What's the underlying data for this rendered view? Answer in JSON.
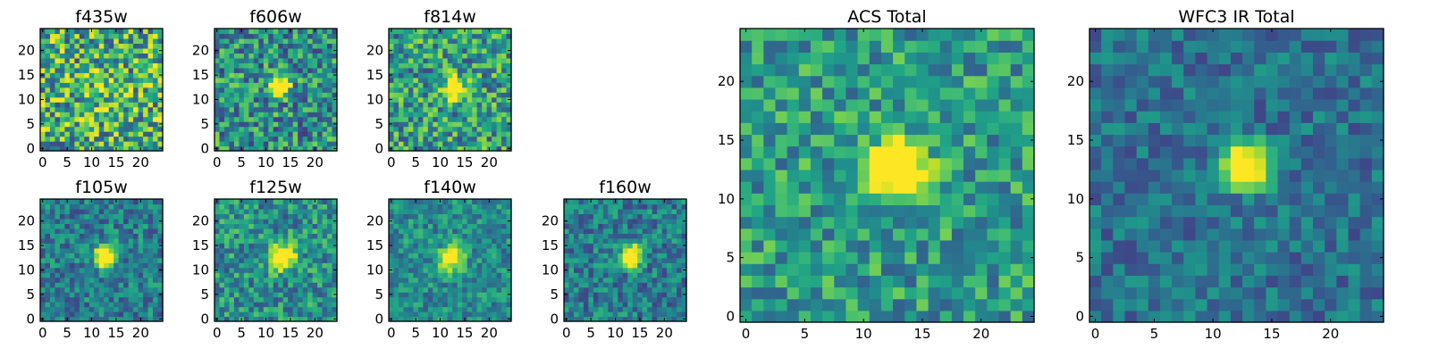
{
  "chart_data": [
    {
      "type": "heatmap",
      "title": "f435w",
      "grid_size": 25,
      "x_ticks": [
        "0",
        "5",
        "10",
        "15",
        "20"
      ],
      "y_ticks": [
        "0",
        "5",
        "10",
        "15",
        "20"
      ],
      "colormap": "viridis",
      "source": {
        "center": [
          12.5,
          12.5
        ],
        "peak": 0.08,
        "width": 2.0,
        "noise": 0.38,
        "base": 0.62
      }
    },
    {
      "type": "heatmap",
      "title": "f606w",
      "grid_size": 25,
      "x_ticks": [
        "0",
        "5",
        "10",
        "15",
        "20"
      ],
      "y_ticks": [
        "0",
        "5",
        "10",
        "15",
        "20"
      ],
      "colormap": "viridis",
      "source": {
        "center": [
          12.8,
          12.8
        ],
        "peak": 0.65,
        "width": 1.3,
        "noise": 0.32,
        "base": 0.5
      }
    },
    {
      "type": "heatmap",
      "title": "f814w",
      "grid_size": 25,
      "x_ticks": [
        "0",
        "5",
        "10",
        "15",
        "20"
      ],
      "y_ticks": [
        "0",
        "5",
        "10",
        "15",
        "20"
      ],
      "colormap": "viridis",
      "source": {
        "center": [
          12.8,
          12.4
        ],
        "peak": 0.6,
        "width": 1.4,
        "noise": 0.32,
        "base": 0.55
      }
    },
    {
      "type": "heatmap",
      "title": "f105w",
      "grid_size": 25,
      "x_ticks": [
        "0",
        "5",
        "10",
        "15",
        "20"
      ],
      "y_ticks": [
        "0",
        "5",
        "10",
        "15",
        "20"
      ],
      "colormap": "viridis",
      "source": {
        "center": [
          12.8,
          12.8
        ],
        "peak": 0.7,
        "width": 1.5,
        "noise": 0.22,
        "base": 0.42
      }
    },
    {
      "type": "heatmap",
      "title": "f125w",
      "grid_size": 25,
      "x_ticks": [
        "0",
        "5",
        "10",
        "15",
        "20"
      ],
      "y_ticks": [
        "0",
        "5",
        "10",
        "15",
        "20"
      ],
      "colormap": "viridis",
      "source": {
        "center": [
          13.3,
          12.8
        ],
        "peak": 0.6,
        "width": 1.8,
        "noise": 0.25,
        "base": 0.5
      }
    },
    {
      "type": "heatmap",
      "title": "f140w",
      "grid_size": 25,
      "x_ticks": [
        "0",
        "5",
        "10",
        "15",
        "20"
      ],
      "y_ticks": [
        "0",
        "5",
        "10",
        "15",
        "20"
      ],
      "colormap": "viridis",
      "source": {
        "center": [
          12.3,
          12.6
        ],
        "peak": 0.55,
        "width": 1.6,
        "noise": 0.2,
        "base": 0.48
      }
    },
    {
      "type": "heatmap",
      "title": "f160w",
      "grid_size": 25,
      "x_ticks": [
        "0",
        "5",
        "10",
        "15",
        "20"
      ],
      "y_ticks": [
        "0",
        "5",
        "10",
        "15",
        "20"
      ],
      "colormap": "viridis",
      "source": {
        "center": [
          13.3,
          12.8
        ],
        "peak": 0.65,
        "width": 1.5,
        "noise": 0.22,
        "base": 0.42
      }
    },
    {
      "type": "heatmap",
      "title": "ACS Total",
      "grid_size": 25,
      "x_ticks": [
        "0",
        "5",
        "10",
        "15",
        "20"
      ],
      "y_ticks": [
        "0",
        "5",
        "10",
        "15",
        "20"
      ],
      "colormap": "viridis",
      "source": {
        "center": [
          12.8,
          12.5
        ],
        "peak": 0.6,
        "width": 1.6,
        "noise": 0.24,
        "base": 0.55
      }
    },
    {
      "type": "heatmap",
      "title": "WFC3 IR Total",
      "grid_size": 25,
      "x_ticks": [
        "0",
        "5",
        "10",
        "15",
        "20"
      ],
      "y_ticks": [
        "0",
        "5",
        "10",
        "15",
        "20"
      ],
      "colormap": "viridis",
      "source": {
        "center": [
          12.8,
          12.8
        ],
        "peak": 0.65,
        "width": 1.3,
        "noise": 0.17,
        "base": 0.38
      }
    }
  ]
}
